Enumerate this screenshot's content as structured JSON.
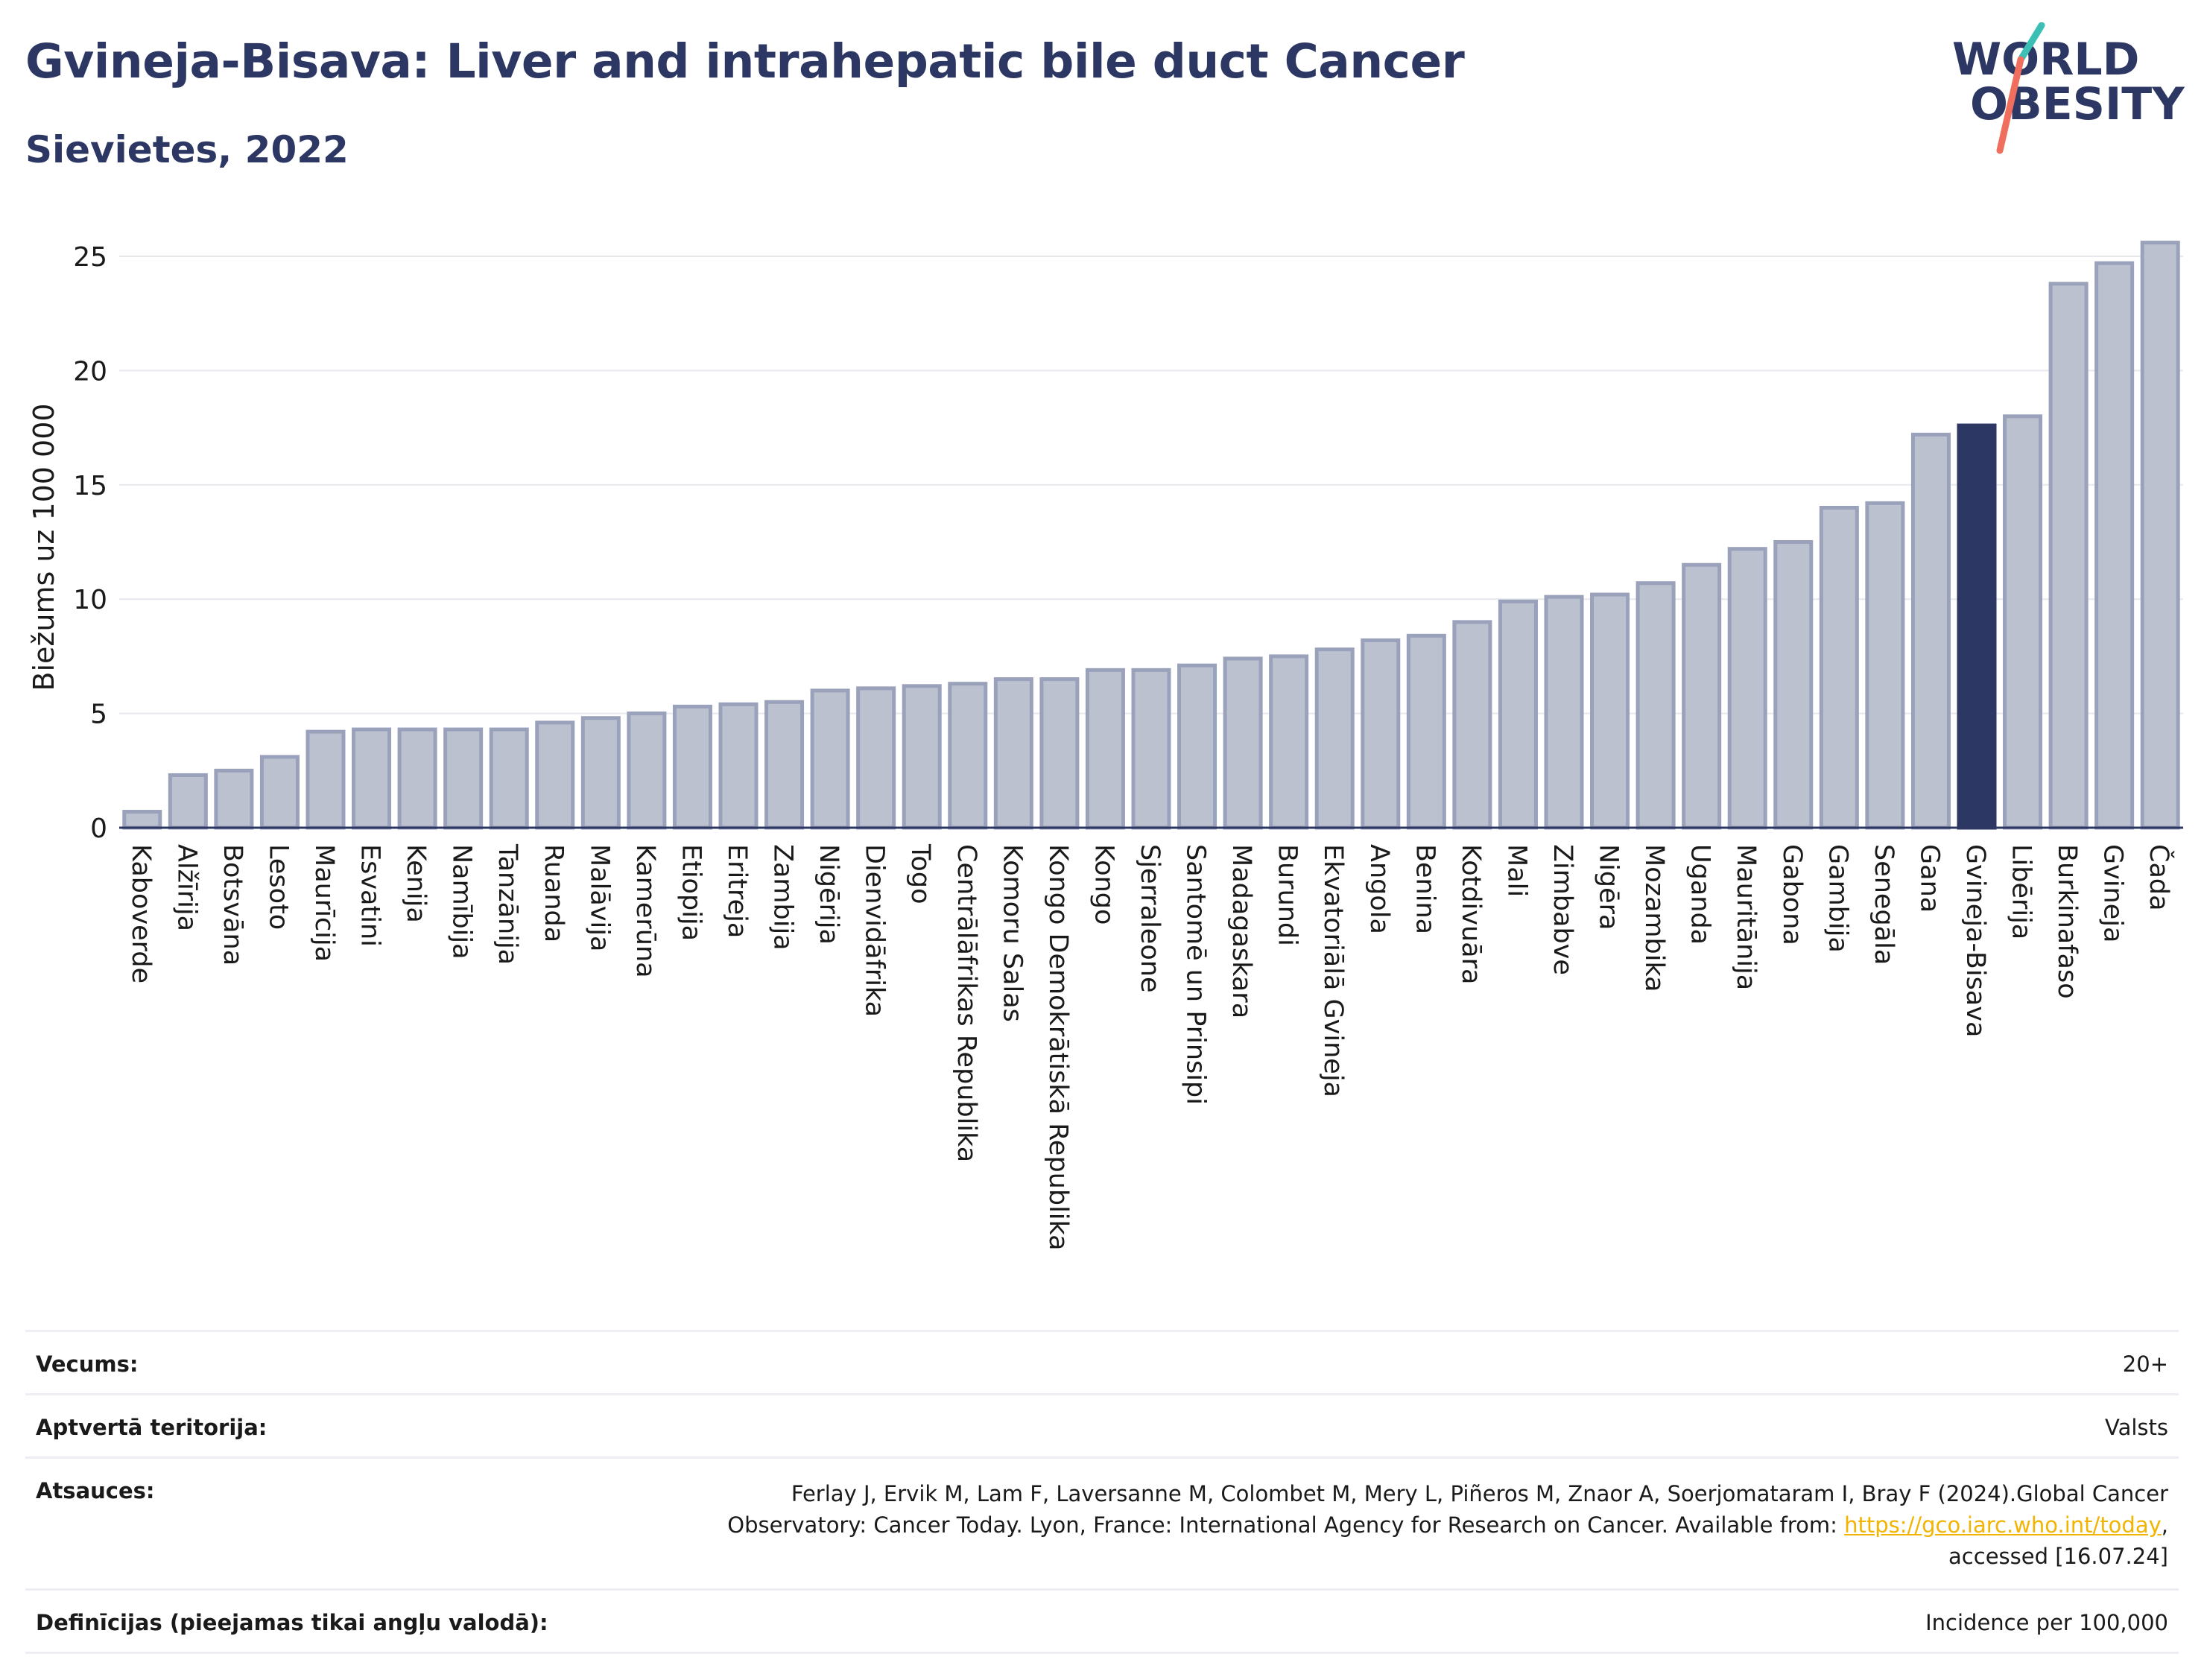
{
  "header": {
    "title": "Gvineja-Bisava: Liver and intrahepatic bile duct Cancer",
    "subtitle": "Sievietes, 2022"
  },
  "logo": {
    "line1": "WORLD",
    "line2": "OBESITY"
  },
  "colors": {
    "bar": "#bcc1d0",
    "bar_edge": "#9aa1ba",
    "highlight": "#2d3763",
    "title": "#2d3763",
    "grid": "#e6e8ee",
    "link": "#f2b400"
  },
  "chart_data": {
    "type": "bar",
    "ylabel": "Biežums uz 100 000",
    "xlabel": "",
    "ylim": [
      0,
      26.5
    ],
    "yticks": [
      0,
      5,
      10,
      15,
      20,
      25
    ],
    "grid": true,
    "highlight": "Gvineja-Bisava",
    "categories": [
      "Kaboverde",
      "Alžīrija",
      "Botsvāna",
      "Lesoto",
      "Maurīcija",
      "Esvatini",
      "Kenija",
      "Namībija",
      "Tanzānija",
      "Ruanda",
      "Malāvija",
      "Kamerūna",
      "Etiopija",
      "Eritreja",
      "Zambija",
      "Nigērija",
      "Dienvidāfrika",
      "Togo",
      "Centrālāfrikas Republika",
      "Komoru Salas",
      "Kongo Demokrātiskā Republika",
      "Kongo",
      "Sjerraleone",
      "Santomē un Prinsipi",
      "Madagaskara",
      "Burundi",
      "Ekvatoriālā Gvineja",
      "Angola",
      "Benina",
      "Kotdivuāra",
      "Mali",
      "Zimbabve",
      "Nigēra",
      "Mozambika",
      "Uganda",
      "Mauritānija",
      "Gabona",
      "Gambija",
      "Senegāla",
      "Gana",
      "Gvineja-Bisava",
      "Libērija",
      "Burkinafaso",
      "Gvineja",
      "Čada"
    ],
    "values": [
      0.7,
      2.3,
      2.5,
      3.1,
      4.2,
      4.3,
      4.3,
      4.3,
      4.3,
      4.6,
      4.8,
      5.0,
      5.3,
      5.4,
      5.5,
      6.0,
      6.1,
      6.2,
      6.3,
      6.5,
      6.5,
      6.9,
      6.9,
      7.1,
      7.4,
      7.5,
      7.8,
      8.2,
      8.4,
      9.0,
      9.9,
      10.1,
      10.2,
      10.7,
      11.5,
      12.2,
      12.5,
      14.0,
      14.2,
      17.2,
      17.6,
      18.0,
      23.8,
      24.7,
      25.6
    ]
  },
  "meta": {
    "rows": [
      {
        "label": "Vecums:",
        "value": "20+"
      },
      {
        "label": "Aptvertā teritorija:",
        "value": "Valsts"
      },
      {
        "label": "Atsauces:",
        "value_line1": "Ferlay J, Ervik M, Lam F, Laversanne M, Colombet M, Mery L, Piñeros M, Znaor A, Soerjomataram I, Bray F (2024).Global Cancer",
        "value_line2_pre": "Observatory: Cancer Today. Lyon, France: International Agency for Research on Cancer. Available from: ",
        "value_link": "https://gco.iarc.who.int/today",
        "value_line2_post": ",",
        "value_line3": "accessed [16.07.24]"
      },
      {
        "label": "Definīcijas (pieejamas tikai angļu valodā):",
        "value": "Incidence per 100,000"
      }
    ]
  }
}
